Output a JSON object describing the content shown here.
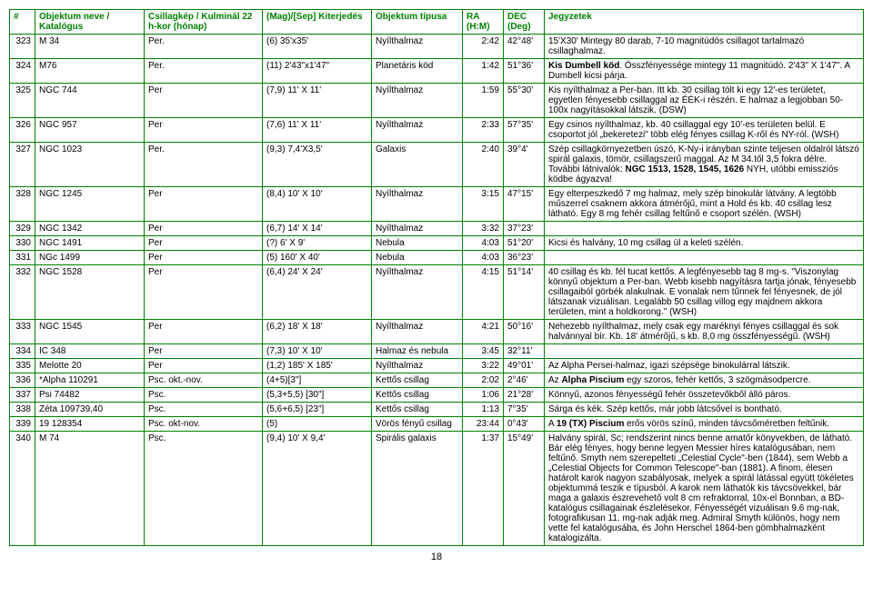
{
  "headers": {
    "num": "#",
    "name": "Objektum neve / Katalógus",
    "const": "Csillagkép / Kulminál 22 h-kor (hónap)",
    "mag": "(Mag)/[Sep] Kiterjedés",
    "type": "Objektum típusa",
    "ra": "RA (H:M)",
    "dec": "DEC (Deg)",
    "notes": "Jegyzetek"
  },
  "rows": [
    {
      "n": "323",
      "name": "M 34",
      "const": "Per.",
      "mag": "(6) 35'x35'",
      "type": "Nyílthalmaz",
      "ra": "2:42",
      "dec": "42°48'",
      "notes": "15'X30' Mintegy 80 darab, 7-10 magnitúdós csillagot tartalmazó csillaghalmaz."
    },
    {
      "n": "324",
      "name": "M76",
      "const": "Per.",
      "mag": "(11) 2'43\"x1'47\"",
      "type": "Planetáris köd",
      "ra": "1:42",
      "dec": "51°36'",
      "notes": "Kis Dumbell köd. Összfényessége mintegy 11 magnitúdó. 2'43\" X 1'47\".  A Dumbell kicsi párja."
    },
    {
      "n": "325",
      "name": "NGC 744",
      "const": "Per",
      "mag": "(7,9) 11' X 11'",
      "type": "Nyílthalmaz",
      "ra": "1:59",
      "dec": "55°30'",
      "notes": "Kis nyílthalmaz a Per-ban. Itt kb. 30 csillag tölt ki egy 12'-es területet, egyetlen fényesebb csillaggal az ÉÉK-i részén. E halmaz a legjobban 50-100x nagyításokkal látszik. (DSW)"
    },
    {
      "n": "326",
      "name": "NGC 957",
      "const": "Per",
      "mag": "(7,6) 11' X 11'",
      "type": "Nyílthalmaz",
      "ra": "2:33",
      "dec": "57°35'",
      "notes": "Egy csinos nyílthalmaz, kb. 40 csillaggal egy 10'-es területen belül. E csoportot jól „bekeretezi\" több elég fényes csillag K-ről és NY-ról. (WSH)"
    },
    {
      "n": "327",
      "name": "NGC 1023",
      "const": "Per.",
      "mag": "(9,3) 7,4'X3,5'",
      "type": "Galaxis",
      "ra": "2:40",
      "dec": "39°4'",
      "notes": "Szép csillagkörnyezetben úszó, K-Ny-i irányban szinte teljesen oldalról látszó spirál galaxis, tömör, csillagszerű maggal. Az M 34.től 3,5 fokra délre. További látnivalók: NGC 1513, 1528, 1545, 1626 NYH, utóbbi emissziós ködbe ágyazva!"
    },
    {
      "n": "328",
      "name": "NGC 1245",
      "const": "Per",
      "mag": "(8,4) 10' X 10'",
      "type": "Nyílthalmaz",
      "ra": "3:15",
      "dec": "47°15'",
      "notes": "Egy elterpeszkedő 7 mg halmaz, mely szép binokulár látvány. A legtöbb műszerrel csaknem akkora átmérőjű, mint a Hold és kb. 40 csillag lesz látható. Egy 8 mg fehér csillag feltűnő e csoport szélén. (WSH)"
    },
    {
      "n": "329",
      "name": "NGC 1342",
      "const": "Per",
      "mag": "(6,7) 14' X 14'",
      "type": "Nyílthalmaz",
      "ra": "3:32",
      "dec": "37°23'",
      "notes": ""
    },
    {
      "n": "330",
      "name": "NGC 1491",
      "const": "Per",
      "mag": "(?) 6' X 9'",
      "type": "Nebula",
      "ra": "4:03",
      "dec": "51°20'",
      "notes": "Kicsi és halvány, 10 mg csillag ül a keleti szélén."
    },
    {
      "n": "331",
      "name": "NGc 1499",
      "const": "Per",
      "mag": "(5) 160' X 40'",
      "type": "Nebula",
      "ra": "4:03",
      "dec": "36°23'",
      "notes": ""
    },
    {
      "n": "332",
      "name": "NGC 1528",
      "const": "Per",
      "mag": "(6,4) 24' X 24'",
      "type": "Nyílthalmaz",
      "ra": "4:15",
      "dec": "51°14'",
      "notes": "40 csillag és kb. fél tucat kettős. A legfényesebb tag 8 mg-s.  \"Viszonylag könnyű objektum a Per-ban. Webb kisebb nagyításra tartja jónak, fényesebb csillagaiból görbék alakulnak. E vonalak nem tűnnek fel fényesnek, de jól látszanak vizuálisan. Legalább 50 csillag villog egy majdnem akkora területen, mint a holdkorong.\" (WSH)"
    },
    {
      "n": "333",
      "name": "NGC 1545",
      "const": "Per",
      "mag": "(6,2) 18' X 18'",
      "type": "Nyílthalmaz",
      "ra": "4:21",
      "dec": "50°16'",
      "notes": "Nehezebb nyílthalmaz, mely csak egy maréknyi fényes csillaggal és sok halvánnyal bír. Kb. 18' átmérőjű, s kb. 8,0 mg összfényességű. (WSH)"
    },
    {
      "n": "334",
      "name": "IC 348",
      "const": "Per",
      "mag": "(7,3) 10' X 10'",
      "type": "Halmaz és nebula",
      "ra": "3:45",
      "dec": "32°11'",
      "notes": ""
    },
    {
      "n": "335",
      "name": "Melotte 20",
      "const": "Per",
      "mag": "(1,2) 185' X 185'",
      "type": "Nyílthalmaz",
      "ra": "3:22",
      "dec": "49°01'",
      "notes": "Az Alpha Persei-halmaz, igazi szépsége binokulárral látszik."
    },
    {
      "n": "336",
      "name": "*Alpha    110291",
      "const": "Psc. okt.-nov.",
      "mag": "(4+5)[3\"]",
      "type": "Kettős csillag",
      "ra": "2:02",
      "dec": "2°46'",
      "notes": "Az Alpha Piscium egy szoros, fehér kettős, 3 szögmásodpercre."
    },
    {
      "n": "337",
      "name": "Psi 74482",
      "const": "Psc.",
      "mag": "(5,3+5,5) [30\"]",
      "type": "Kettős csillag",
      "ra": "1:06",
      "dec": "21°28'",
      "notes": "Könnyű, azonos fényességű fehér összetevőkből álló páros."
    },
    {
      "n": "338",
      "name": "Zéta 109739,40",
      "const": "Psc.",
      "mag": "(5,6+6,5) [23\"]",
      "type": "Kettős csillag",
      "ra": "1:13",
      "dec": "7°35'",
      "notes": "Sárga és kék. Szép kettős, már jobb látcsővel is bontható."
    },
    {
      "n": "339",
      "name": "19   128354",
      "const": "Psc.   okt-nov.",
      "mag": "(5)",
      "type": "Vörös fényű csillag",
      "ra": "23:44",
      "dec": "0°43'",
      "notes": "A 19 (TX) Piscium erős vörös színű, minden távcsőméretben feltűnik."
    },
    {
      "n": "340",
      "name": "M 74",
      "const": "Psc.",
      "mag": "(9,4) 10' X 9,4'",
      "type": "Spirális galaxis",
      "ra": "1:37",
      "dec": "15°49'",
      "notes": "Halvány spirál, Sc; rendszerint nincs benne amatőr könyvekben, de látható. Bár elég fényes, hogy benne legyen Messier híres katalógusában, nem feltűnő. Smyth nem szerepelteti „Celestial Cycle\"-ben (1844), sem Webb a „Celestial Objects for Common Telescope\"-ban (1881). A finom, élesen határolt karok nagyon szabályosak, melyek a spirál látással együtt tökéletes objektummá teszik e típusból. A karok nem láthatók kis távcsövekkel, bár maga a galaxis észrevehető volt 8 cm refraktorral, 10x-el Bonnban, a BD-katalógus csillagainak észlelésekor. Fényességét vizuálisan 9.6 mg-nak, fotografikusan 11. mg-nak adják meg. Admiral Smyth különös, hogy nem vette fel katalógusába, és John Herschel 1864-ben gömbhalmazként katalogizálta."
    }
  ],
  "pagenum": "18"
}
